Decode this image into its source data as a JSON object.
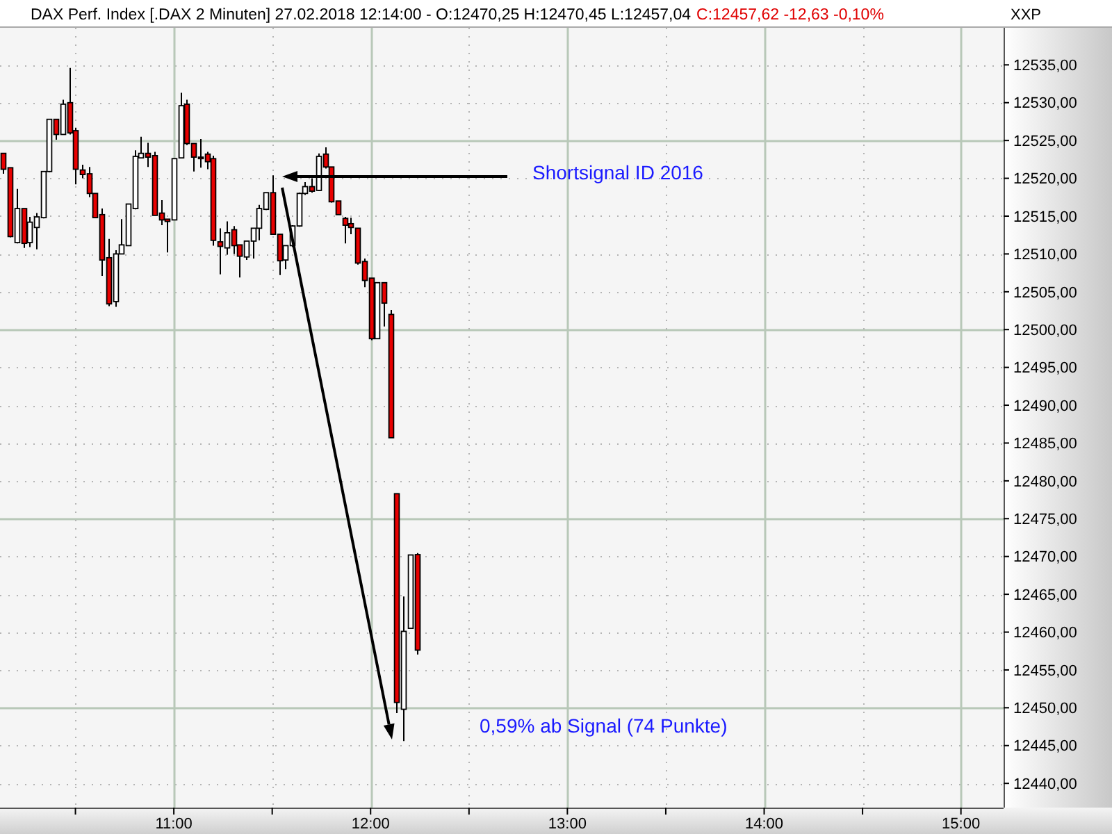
{
  "chart_data": {
    "type": "candlestick",
    "title": "DAX Perf. Index [.DAX  2 Minuten] 27.02.2018 12:14:00 - O:12470,25 H:12470,45 L:12457,04",
    "subtitle": "C:12457,62 -12,63 -0,10%",
    "x": [
      "2018-02-27T10:08",
      "2018-02-27T10:10",
      "2018-02-27T10:12",
      "2018-02-27T10:14",
      "2018-02-27T10:16",
      "2018-02-27T10:18",
      "2018-02-27T10:20",
      "2018-02-27T10:22",
      "2018-02-27T10:24",
      "2018-02-27T10:26",
      "2018-02-27T10:28",
      "2018-02-27T10:30",
      "2018-02-27T10:32",
      "2018-02-27T10:34",
      "2018-02-27T10:36",
      "2018-02-27T10:38",
      "2018-02-27T10:40",
      "2018-02-27T10:42",
      "2018-02-27T10:44",
      "2018-02-27T10:46",
      "2018-02-27T10:48",
      "2018-02-27T10:50",
      "2018-02-27T10:52",
      "2018-02-27T10:54",
      "2018-02-27T10:56",
      "2018-02-27T10:58",
      "2018-02-27T11:00",
      "2018-02-27T11:02",
      "2018-02-27T11:04",
      "2018-02-27T11:06",
      "2018-02-27T11:08",
      "2018-02-27T11:10",
      "2018-02-27T11:12",
      "2018-02-27T11:14",
      "2018-02-27T11:16",
      "2018-02-27T11:18",
      "2018-02-27T11:20",
      "2018-02-27T11:22",
      "2018-02-27T11:24",
      "2018-02-27T11:26",
      "2018-02-27T11:28",
      "2018-02-27T11:30",
      "2018-02-27T11:32",
      "2018-02-27T11:34",
      "2018-02-27T11:36",
      "2018-02-27T11:38",
      "2018-02-27T11:40",
      "2018-02-27T11:42",
      "2018-02-27T11:44",
      "2018-02-27T11:46",
      "2018-02-27T11:48",
      "2018-02-27T11:50",
      "2018-02-27T11:52",
      "2018-02-27T11:54",
      "2018-02-27T11:56",
      "2018-02-27T11:58",
      "2018-02-27T12:00",
      "2018-02-27T12:02",
      "2018-02-27T12:04",
      "2018-02-27T12:06",
      "2018-02-27T12:08",
      "2018-02-27T12:10",
      "2018-02-27T12:12",
      "2018-02-27T12:14"
    ],
    "ohlc": [
      [
        12523.3,
        12523.3,
        12520.6,
        12521.2
      ],
      [
        12521.4,
        12521.4,
        12512.2,
        12512.3
      ],
      [
        12511.5,
        12518.6,
        12511.4,
        12516.0
      ],
      [
        12516.0,
        12516.0,
        12510.8,
        12511.4
      ],
      [
        12511.5,
        12514.9,
        12510.9,
        12514.2
      ],
      [
        12513.5,
        12515.4,
        12510.6,
        12514.9
      ],
      [
        12514.8,
        12520.9,
        12514.7,
        12520.9
      ],
      [
        12520.9,
        12527.8,
        12520.8,
        12527.8
      ],
      [
        12527.8,
        12527.8,
        12525.1,
        12525.8
      ],
      [
        12525.8,
        12530.4,
        12525.8,
        12529.8
      ],
      [
        12530.0,
        12534.6,
        12525.8,
        12526.0
      ],
      [
        12526.3,
        12526.7,
        12519.2,
        12521.2
      ],
      [
        12521.1,
        12521.8,
        12520.0,
        12520.5
      ],
      [
        12520.6,
        12521.5,
        12517.5,
        12518.0
      ],
      [
        12518.0,
        12518.0,
        12514.8,
        12514.8
      ],
      [
        12515.2,
        12516.0,
        12507.1,
        12509.2
      ],
      [
        12509.5,
        12512.0,
        12503.1,
        12503.4
      ],
      [
        12503.7,
        12510.5,
        12503.0,
        12510.0
      ],
      [
        12510.0,
        12514.6,
        12510.0,
        12511.2
      ],
      [
        12511.1,
        12516.6,
        12511.1,
        12516.6
      ],
      [
        12516.0,
        12523.7,
        12515.9,
        12522.9
      ],
      [
        12522.7,
        12525.5,
        12522.7,
        12523.3
      ],
      [
        12523.3,
        12524.7,
        12521.5,
        12522.8
      ],
      [
        12523.0,
        12523.5,
        12515.1,
        12515.1
      ],
      [
        12515.4,
        12517.1,
        12513.8,
        12514.5
      ],
      [
        12514.6,
        12514.6,
        12510.2,
        12514.3
      ],
      [
        12514.5,
        12522.6,
        12514.5,
        12522.6
      ],
      [
        12522.7,
        12531.3,
        12522.7,
        12529.6
      ],
      [
        12529.8,
        12530.4,
        12524.4,
        12524.6
      ],
      [
        12524.6,
        12524.6,
        12520.9,
        12522.8
      ],
      [
        12522.8,
        12525.2,
        12521.4,
        12522.6
      ],
      [
        12523.2,
        12523.5,
        12521.2,
        12522.2
      ],
      [
        12522.6,
        12523.0,
        12511.1,
        12511.8
      ],
      [
        12511.6,
        12513.4,
        12507.3,
        12511.0
      ],
      [
        12510.8,
        12514.3,
        12509.9,
        12512.8
      ],
      [
        12513.2,
        12513.7,
        12510.0,
        12511.1
      ],
      [
        12511.2,
        12511.2,
        12506.9,
        12509.7
      ],
      [
        12509.6,
        12511.7,
        12509.2,
        12511.7
      ],
      [
        12511.7,
        12513.4,
        12509.4,
        12513.4
      ],
      [
        12513.4,
        12516.5,
        12511.8,
        12516.0
      ],
      [
        12515.9,
        12518.1,
        12515.8,
        12518.1
      ],
      [
        12518.1,
        12520.4,
        12512.6,
        12512.6
      ],
      [
        12512.6,
        12512.6,
        12507.2,
        12509.1
      ],
      [
        12509.2,
        12511.1,
        12508.0,
        12511.1
      ],
      [
        12511.1,
        12513.8,
        12510.9,
        12513.7
      ],
      [
        12513.7,
        12518.1,
        12513.6,
        12518.0
      ],
      [
        12518.0,
        12519.5,
        12517.8,
        12518.9
      ],
      [
        12518.9,
        12520.0,
        12518.1,
        12518.3
      ],
      [
        12518.4,
        12523.3,
        12518.3,
        12522.9
      ],
      [
        12523.2,
        12524.1,
        12521.3,
        12521.5
      ],
      [
        12521.5,
        12521.5,
        12516.8,
        12516.9
      ],
      [
        12517.0,
        12517.0,
        12515.2,
        12515.2
      ],
      [
        12514.7,
        12514.9,
        12511.4,
        12513.8
      ],
      [
        12514.0,
        12514.8,
        12512.6,
        12513.5
      ],
      [
        12513.4,
        12513.4,
        12508.6,
        12508.8
      ],
      [
        12509.0,
        12509.4,
        12505.6,
        12506.5
      ],
      [
        12506.8,
        12506.8,
        12498.6,
        12498.8
      ],
      [
        12498.8,
        12506.2,
        12498.8,
        12506.2
      ],
      [
        12506.2,
        12506.2,
        12500.4,
        12503.5
      ],
      [
        12502.0,
        12502.6,
        12485.7,
        12485.7
      ],
      [
        12478.3,
        12478.3,
        12449.3,
        12450.7
      ],
      [
        12449.8,
        12464.7,
        12445.6,
        12460.1
      ],
      [
        12460.5,
        12470.2,
        12460.5,
        12470.2
      ],
      [
        12470.25,
        12470.45,
        12457.04,
        12457.62
      ]
    ],
    "xlim": [
      "2018-02-27T10:07",
      "2018-02-27T15:13"
    ],
    "xticks": [
      {
        "value": "2018-02-27T10:30",
        "label": null
      },
      {
        "value": "2018-02-27T11:00",
        "label": "11:00"
      },
      {
        "value": "2018-02-27T11:30",
        "label": null
      },
      {
        "value": "2018-02-27T12:00",
        "label": "12:00"
      },
      {
        "value": "2018-02-27T12:30",
        "label": null
      },
      {
        "value": "2018-02-27T13:00",
        "label": "13:00"
      },
      {
        "value": "2018-02-27T13:30",
        "label": null
      },
      {
        "value": "2018-02-27T14:00",
        "label": "14:00"
      },
      {
        "value": "2018-02-27T14:30",
        "label": null
      },
      {
        "value": "2018-02-27T15:00",
        "label": "15:00"
      }
    ],
    "ylim": [
      12436.8,
      12539.9
    ],
    "yticks": [
      {
        "value": 12440,
        "label": "12440,00"
      },
      {
        "value": 12445,
        "label": "12445,00"
      },
      {
        "value": 12450,
        "label": "12450,00"
      },
      {
        "value": 12455,
        "label": "12455,00"
      },
      {
        "value": 12460,
        "label": "12460,00"
      },
      {
        "value": 12465,
        "label": "12465,00"
      },
      {
        "value": 12470,
        "label": "12470,00"
      },
      {
        "value": 12475,
        "label": "12475,00"
      },
      {
        "value": 12480,
        "label": "12480,00"
      },
      {
        "value": 12485,
        "label": "12485,00"
      },
      {
        "value": 12490,
        "label": "12490,00"
      },
      {
        "value": 12495,
        "label": "12495,00"
      },
      {
        "value": 12500,
        "label": "12500,00"
      },
      {
        "value": 12505,
        "label": "12505,00"
      },
      {
        "value": 12510,
        "label": "12510,00"
      },
      {
        "value": 12515,
        "label": "12515,00"
      },
      {
        "value": 12520,
        "label": "12520,00"
      },
      {
        "value": 12525,
        "label": "12525,00"
      },
      {
        "value": 12530,
        "label": "12530,00"
      },
      {
        "value": 12535,
        "label": "12535,00"
      }
    ],
    "grid": true,
    "annotations": [
      "Shortsignal ID 2016",
      "0,59% ab Signal (74 Punkte)",
      "XXP"
    ]
  }
}
